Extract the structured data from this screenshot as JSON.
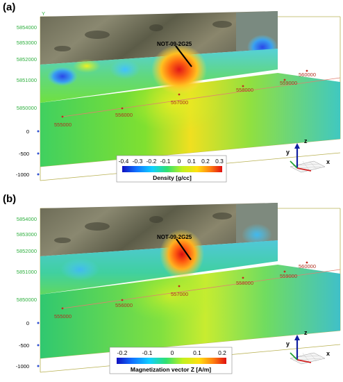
{
  "panels": [
    {
      "label": "(a)",
      "ylabel": "Y",
      "hole_label": "NOT-09-2G25",
      "northing_ticks": [
        "5854000",
        "5853000",
        "5852000",
        "5851000",
        "5850000"
      ],
      "depth_ticks": [
        "0",
        "-500",
        "-1000"
      ],
      "easting_ticks": [
        "555000",
        "556000",
        "557000",
        "558000",
        "559000",
        "560000"
      ],
      "colorbar_ticks": [
        "-0.4",
        "-0.3",
        "-0.2",
        "-0.1",
        "0",
        "0.1",
        "0.2",
        "0.3"
      ],
      "colorbar_title": "Density [g/cc]",
      "axes": {
        "z": "z",
        "y": "y",
        "x": "x"
      }
    },
    {
      "label": "(b)",
      "hole_label": "NOT-09-2G25",
      "northing_ticks": [
        "5854000",
        "5853000",
        "5852000",
        "5851000",
        "5850000"
      ],
      "depth_ticks": [
        "0",
        "-500",
        "-1000"
      ],
      "easting_ticks": [
        "555000",
        "556000",
        "557000",
        "558000",
        "559000",
        "560000"
      ],
      "colorbar_ticks": [
        "-0.2",
        "-0.1",
        "0",
        "0.1",
        "0.2"
      ],
      "colorbar_title": "Magnetization vector Z [A/m]",
      "axes": {
        "z": "z",
        "y": "y",
        "x": "x"
      }
    }
  ],
  "colors": {
    "bbox_line": "#b8b050",
    "northing_tick": "#30b040",
    "easting_tick": "#b03020",
    "rainbow": [
      "#1010c0",
      "#1070ff",
      "#10d0ff",
      "#30e070",
      "#c0f020",
      "#ffe010",
      "#ff8010",
      "#e01010"
    ]
  }
}
